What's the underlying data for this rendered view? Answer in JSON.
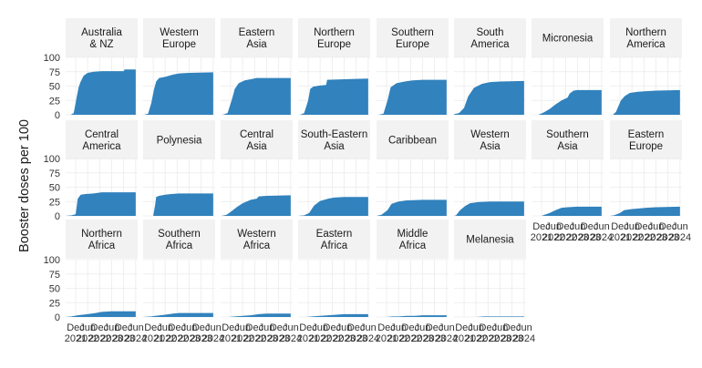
{
  "chart_data": {
    "type": "area",
    "ylabel": "Booster doses per 100",
    "xlabel": "",
    "ylim": [
      0,
      100
    ],
    "y_ticks": [
      0,
      25,
      50,
      75,
      100
    ],
    "x_range": [
      "2021-07-01",
      "2024-07-01"
    ],
    "x_ticks": [
      {
        "label": "Dec\n2021",
        "date": "2021-12-01"
      },
      {
        "label": "Jun\n2022",
        "date": "2022-06-01"
      },
      {
        "label": "Dec\n2022",
        "date": "2022-12-01"
      },
      {
        "label": "Jun\n2023",
        "date": "2023-06-01"
      },
      {
        "label": "Dec\n2023",
        "date": "2023-12-01"
      },
      {
        "label": "Jun\n2024",
        "date": "2024-06-01"
      }
    ],
    "grid": true,
    "fill_color": "#3182bd",
    "strip_color": "#f2f2f2",
    "grid_color": "#ebebeb",
    "panels": [
      {
        "name": "Australia\n& NZ",
        "x": [
          "2021-09-15",
          "2021-11-01",
          "2021-12-15",
          "2022-01-15",
          "2022-02-15",
          "2022-04-01",
          "2022-06-01",
          "2022-09-01",
          "2023-01-01",
          "2023-06-01",
          "2023-12-01",
          "2023-12-15",
          "2024-06-01"
        ],
        "y": [
          0,
          3,
          30,
          48,
          58,
          68,
          73,
          75,
          76,
          76,
          76,
          79,
          79
        ]
      },
      {
        "name": "Western\nEurope",
        "x": [
          "2021-07-15",
          "2021-09-15",
          "2021-11-01",
          "2021-12-15",
          "2022-01-15",
          "2022-03-01",
          "2022-06-01",
          "2022-10-01",
          "2023-01-01",
          "2023-06-01",
          "2024-06-01"
        ],
        "y": [
          0,
          2,
          20,
          45,
          58,
          64,
          66,
          70,
          72,
          73,
          74
        ]
      },
      {
        "name": "Eastern\nAsia",
        "x": [
          "2021-08-01",
          "2021-10-15",
          "2021-12-15",
          "2022-02-01",
          "2022-04-01",
          "2022-07-01",
          "2022-10-01",
          "2023-01-01",
          "2023-06-01",
          "2024-06-01"
        ],
        "y": [
          0,
          3,
          25,
          45,
          55,
          60,
          62,
          64,
          64,
          64
        ]
      },
      {
        "name": "Northern\nEurope",
        "x": [
          "2021-08-01",
          "2021-10-01",
          "2021-12-01",
          "2022-01-01",
          "2022-02-15",
          "2022-06-01",
          "2022-09-01",
          "2022-09-15",
          "2023-06-01",
          "2024-06-01"
        ],
        "y": [
          0,
          3,
          25,
          45,
          49,
          51,
          52,
          61,
          62,
          63
        ]
      },
      {
        "name": "Southern\nEurope",
        "x": [
          "2021-08-01",
          "2021-10-15",
          "2021-12-15",
          "2022-02-01",
          "2022-05-01",
          "2022-09-01",
          "2023-01-01",
          "2023-06-01",
          "2024-06-01"
        ],
        "y": [
          0,
          2,
          25,
          48,
          55,
          58,
          60,
          61,
          61
        ]
      },
      {
        "name": "South\nAmerica",
        "x": [
          "2021-07-01",
          "2021-09-15",
          "2021-12-01",
          "2022-02-01",
          "2022-05-01",
          "2022-09-01",
          "2023-01-01",
          "2023-06-01",
          "2024-06-01"
        ],
        "y": [
          1,
          3,
          12,
          32,
          47,
          54,
          57,
          58,
          59
        ]
      },
      {
        "name": "Micronesia",
        "x": [
          "2021-10-15",
          "2022-01-01",
          "2022-04-01",
          "2022-07-01",
          "2022-10-01",
          "2023-01-01",
          "2023-02-01",
          "2023-04-01",
          "2023-06-01",
          "2024-06-01"
        ],
        "y": [
          0,
          4,
          10,
          18,
          25,
          30,
          37,
          42,
          43,
          43
        ]
      },
      {
        "name": "Northern\nAmerica",
        "x": [
          "2021-08-15",
          "2021-10-01",
          "2021-12-15",
          "2022-02-15",
          "2022-05-01",
          "2022-09-01",
          "2023-01-01",
          "2023-06-01",
          "2024-06-01"
        ],
        "y": [
          0,
          5,
          25,
          33,
          38,
          40,
          41,
          42,
          43
        ]
      },
      {
        "name": "Central\nAmerica",
        "x": [
          "2021-07-01",
          "2021-10-01",
          "2021-12-01",
          "2022-01-01",
          "2022-02-15",
          "2022-05-01",
          "2022-09-01",
          "2023-01-01",
          "2023-06-01",
          "2024-06-01"
        ],
        "y": [
          0,
          1,
          3,
          30,
          37,
          38,
          39,
          41,
          41,
          41
        ]
      },
      {
        "name": "Polynesia",
        "x": [
          "2021-07-01",
          "2021-12-01",
          "2022-01-01",
          "2022-01-15",
          "2022-03-01",
          "2022-06-01",
          "2022-09-01",
          "2023-01-01",
          "2024-06-01"
        ],
        "y": [
          0,
          0,
          20,
          33,
          35,
          37,
          38,
          39,
          39
        ]
      },
      {
        "name": "Central\nAsia",
        "x": [
          "2021-07-15",
          "2021-10-01",
          "2021-12-01",
          "2022-03-01",
          "2022-06-01",
          "2022-10-01",
          "2023-01-01",
          "2023-02-01",
          "2023-06-01",
          "2024-06-01"
        ],
        "y": [
          0,
          2,
          7,
          15,
          22,
          28,
          30,
          34,
          35,
          36
        ]
      },
      {
        "name": "South-Eastern\nAsia",
        "x": [
          "2021-07-01",
          "2021-10-01",
          "2021-12-15",
          "2022-03-01",
          "2022-06-01",
          "2022-10-01",
          "2023-01-01",
          "2023-06-01",
          "2024-06-01"
        ],
        "y": [
          0,
          1,
          5,
          18,
          26,
          30,
          32,
          33,
          33
        ]
      },
      {
        "name": "Caribbean",
        "x": [
          "2021-07-01",
          "2021-09-15",
          "2021-12-15",
          "2022-02-15",
          "2022-06-01",
          "2022-10-01",
          "2023-06-01",
          "2024-06-01"
        ],
        "y": [
          0,
          2,
          10,
          21,
          25,
          27,
          28,
          28
        ]
      },
      {
        "name": "Western\nAsia",
        "x": [
          "2021-07-01",
          "2021-08-01",
          "2021-10-01",
          "2021-12-15",
          "2022-03-01",
          "2022-07-01",
          "2023-01-01",
          "2023-06-01",
          "2024-06-01"
        ],
        "y": [
          0,
          1,
          10,
          17,
          22,
          24,
          25,
          25,
          25
        ]
      },
      {
        "name": "Southern\nAsia",
        "x": [
          "2021-07-01",
          "2021-12-01",
          "2022-01-15",
          "2022-04-01",
          "2022-07-01",
          "2022-10-01",
          "2023-01-01",
          "2023-06-01",
          "2024-06-01"
        ],
        "y": [
          0,
          0,
          2,
          5,
          10,
          14,
          15,
          16,
          16
        ]
      },
      {
        "name": "Eastern\nEurope",
        "x": [
          "2021-07-01",
          "2021-09-01",
          "2021-12-01",
          "2022-02-01",
          "2022-06-01",
          "2022-10-01",
          "2023-01-01",
          "2023-06-01",
          "2024-06-01"
        ],
        "y": [
          0,
          1,
          5,
          10,
          12,
          13,
          14,
          15,
          16
        ]
      },
      {
        "name": "Northern\nAfrica",
        "x": [
          "2021-07-01",
          "2021-10-01",
          "2022-01-01",
          "2022-06-01",
          "2022-10-01",
          "2023-01-01",
          "2023-06-01",
          "2024-06-01"
        ],
        "y": [
          0,
          1,
          3,
          5,
          7,
          9,
          10,
          10
        ]
      },
      {
        "name": "Southern\nAfrica",
        "x": [
          "2021-07-01",
          "2021-11-01",
          "2022-01-01",
          "2022-06-01",
          "2022-10-01",
          "2023-01-01",
          "2023-06-01",
          "2024-06-01"
        ],
        "y": [
          0,
          1,
          2,
          4,
          6,
          7,
          7,
          7
        ]
      },
      {
        "name": "Western\nAfrica",
        "x": [
          "2021-07-01",
          "2021-11-01",
          "2022-02-01",
          "2022-06-01",
          "2022-10-01",
          "2023-02-01",
          "2023-06-01",
          "2024-06-01"
        ],
        "y": [
          0,
          0,
          1,
          2,
          3,
          5,
          6,
          6
        ]
      },
      {
        "name": "Eastern\nAfrica",
        "x": [
          "2021-07-01",
          "2021-11-01",
          "2022-02-01",
          "2022-06-01",
          "2022-10-01",
          "2023-02-01",
          "2023-06-01",
          "2024-06-01"
        ],
        "y": [
          0,
          0,
          1,
          2,
          3,
          4,
          5,
          5
        ]
      },
      {
        "name": "Middle\nAfrica",
        "x": [
          "2021-07-01",
          "2021-12-01",
          "2022-03-01",
          "2022-06-01",
          "2022-10-01",
          "2023-02-01",
          "2023-06-01",
          "2024-06-01"
        ],
        "y": [
          0,
          0,
          1,
          1,
          2,
          2,
          3,
          3
        ]
      },
      {
        "name": "Melanesia",
        "x": [
          "2021-07-01",
          "2022-01-01",
          "2022-06-01",
          "2022-10-01",
          "2023-02-01",
          "2023-06-01",
          "2024-06-01"
        ],
        "y": [
          0,
          0,
          0,
          1,
          1,
          1,
          1
        ]
      }
    ]
  }
}
